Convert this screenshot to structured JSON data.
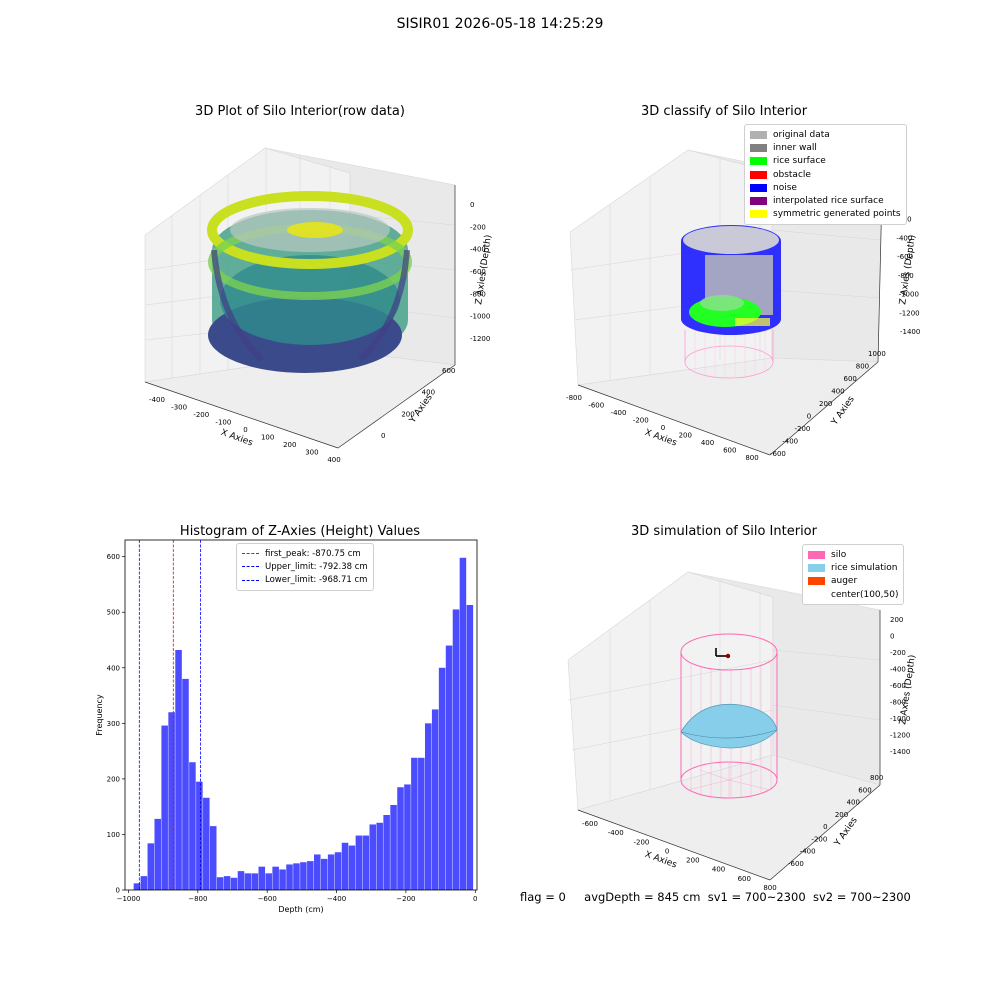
{
  "suptitle": "SISIR01 2026-05-18 14:25:29",
  "panels": {
    "raw": {
      "title": "3D Plot of Silo Interior(row data)",
      "xlabel": "X Axies",
      "ylabel": "Y Axies",
      "zlabel": "Z Axies (Depth)",
      "xticks": [
        "-400",
        "-300",
        "-200",
        "-100",
        "0",
        "100",
        "200",
        "300",
        "400"
      ],
      "yticks": [
        "0",
        "200",
        "400",
        "600"
      ],
      "zticks": [
        "0",
        "-200",
        "-400",
        "-600",
        "-800",
        "-1000",
        "-1200"
      ]
    },
    "classify": {
      "title": "3D classify of Silo Interior",
      "xlabel": "X Axies",
      "ylabel": "Y Axies",
      "zlabel": "Z Axies (Depth)",
      "xticks": [
        "-800",
        "-600",
        "-400",
        "-200",
        "0",
        "200",
        "400",
        "600",
        "800"
      ],
      "yticks": [
        "-600",
        "-400",
        "-200",
        "0",
        "200",
        "400",
        "600",
        "800",
        "1000"
      ],
      "zticks": [
        "0",
        "-200",
        "-400",
        "-600",
        "-800",
        "-1000",
        "-1200",
        "-1400"
      ],
      "legend": [
        {
          "label": "original data",
          "color": "#b0b0b0"
        },
        {
          "label": "inner wall",
          "color": "#808080"
        },
        {
          "label": "rice surface",
          "color": "#00ff00"
        },
        {
          "label": "obstacle",
          "color": "#ff0000"
        },
        {
          "label": "noise",
          "color": "#0000ff"
        },
        {
          "label": "interpolated rice surface",
          "color": "#800080"
        },
        {
          "label": "symmetric generated points",
          "color": "#ffff00"
        }
      ]
    },
    "simulation": {
      "title": "3D simulation of Silo Interior",
      "xlabel": "X Axies",
      "ylabel": "Y Axies",
      "zlabel": "Z Axies (Depth)",
      "xticks": [
        "-600",
        "-400",
        "-200",
        "0",
        "200",
        "400",
        "600",
        "800"
      ],
      "yticks": [
        "-600",
        "-400",
        "-200",
        "0",
        "200",
        "400",
        "600",
        "800"
      ],
      "zticks": [
        "200",
        "0",
        "-200",
        "-400",
        "-600",
        "-800",
        "-1000",
        "-1200",
        "-1400"
      ],
      "legend": [
        {
          "label": "silo",
          "color": "#ff69b4"
        },
        {
          "label": "rice simulation",
          "color": "#87ceeb"
        },
        {
          "label": "auger",
          "color": "#ff4500"
        },
        {
          "label": "center(100,50)",
          "color": "transparent"
        }
      ]
    }
  },
  "chart_data": {
    "type": "bar",
    "title": "Histogram of Z-Axies (Height) Values",
    "xlabel": "Depth (cm)",
    "ylabel": "Frequency",
    "xlim": [
      -1010,
      5
    ],
    "ylim": [
      0,
      630
    ],
    "xticks": [
      -1000,
      -800,
      -600,
      -400,
      -200,
      0
    ],
    "yticks": [
      0,
      100,
      200,
      300,
      400,
      500,
      600
    ],
    "bin_width": 20,
    "bin_starts": [
      -985,
      -965,
      -945,
      -925,
      -905,
      -885,
      -865,
      -845,
      -825,
      -805,
      -785,
      -765,
      -745,
      -725,
      -705,
      -685,
      -665,
      -645,
      -625,
      -605,
      -585,
      -565,
      -545,
      -525,
      -505,
      -485,
      -465,
      -445,
      -425,
      -405,
      -385,
      -365,
      -345,
      -325,
      -305,
      -285,
      -265,
      -245,
      -225,
      -205,
      -185,
      -165,
      -145,
      -125,
      -105,
      -85,
      -65,
      -45,
      -25
    ],
    "values": [
      12,
      25,
      84,
      128,
      296,
      320,
      432,
      380,
      230,
      195,
      166,
      115,
      23,
      25,
      22,
      34,
      30,
      30,
      42,
      30,
      42,
      37,
      46,
      48,
      50,
      52,
      64,
      56,
      64,
      68,
      85,
      80,
      98,
      98,
      118,
      121,
      135,
      153,
      185,
      190,
      238,
      238,
      300,
      325,
      400,
      440,
      505,
      598,
      513
    ],
    "bar_color": "#0000ff",
    "vlines": [
      {
        "label": "first_peak: -870.75 cm",
        "x": -870.75,
        "color": "#ff0000"
      },
      {
        "label": "Upper_limit: -792.38 cm",
        "x": -792.38,
        "color": "#0000ff"
      },
      {
        "label": "Lower_limit: -968.71 cm",
        "x": -968.71,
        "color": "#0000ff"
      }
    ]
  },
  "footer": {
    "flag": "flag = 0",
    "avg_depth": "avgDepth = 845 cm",
    "sv1": "sv1 = 700~2300",
    "sv2": "sv2 = 700~2300"
  }
}
